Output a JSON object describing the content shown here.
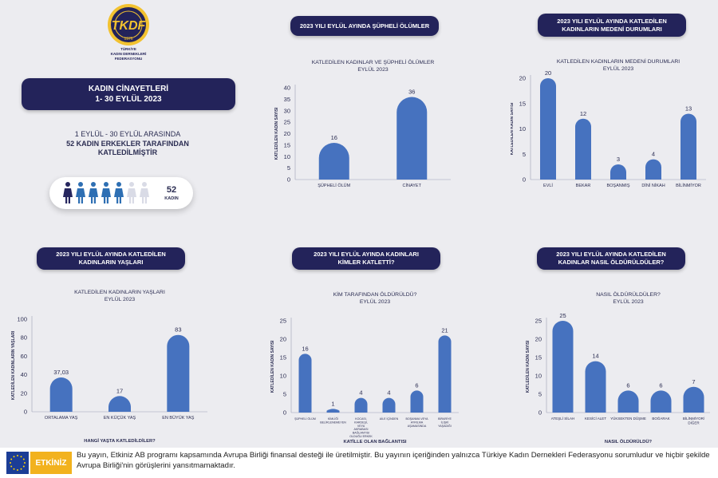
{
  "logo": {
    "org_line1": "TÜRKİYE",
    "org_line2": "KADIN DERNEKLERİ",
    "org_line3": "FEDERASYONU",
    "year": "1976",
    "monogram": "TKDF"
  },
  "header": {
    "title_line1": "KADIN CİNAYETLERİ",
    "title_line2": "1- 30 EYLÜL 2023"
  },
  "summary": {
    "line1": "1 EYLÜL - 30 EYLÜL  ARASINDA",
    "line2": "52 KADIN ERKEKLER TARAFINDAN",
    "line3": "KATLEDİLMİŞTİR",
    "count": "52",
    "count_unit": "KADIN",
    "icons_filled": 5,
    "icons_total": 7
  },
  "sections": {
    "supheli": {
      "l1": "2023 YILI EYLÜL AYINDA ŞÜPHELİ ÖLÜMLER",
      "l2": ""
    },
    "medeni": {
      "l1": "2023 YILI EYLÜL AYINDA KATLEDİLEN",
      "l2": "KADINLARIN MEDENİ DURUMLARI"
    },
    "yas": {
      "l1": "2023 YILI EYLÜL AYINDA KATLEDİLEN",
      "l2": "KADINLARIN YAŞLARI"
    },
    "kimler": {
      "l1": "2023 YILI EYLÜL AYINDA KADINLARI",
      "l2": "KİMLER KATLETTİ?"
    },
    "nasil": {
      "l1": "2023 YILI EYLÜL AYINDA KATLEDİLEN",
      "l2": "KADINLAR NASIL ÖLDÜRÜLDÜLER?"
    }
  },
  "footer": {
    "text": "Bu yayın, Etkiniz AB programı kapsamında Avrupa Birliği finansal desteği ile üretilmiştir. Bu yayının içeriğinden yalnızca Türkiye Kadın Dernekleri Federasyonu sorumludur ve hiçbir şekilde Avrupa Birliği'nin görüşlerini yansıtmamaktadır.",
    "partner": "ETKİNİZ"
  },
  "colors": {
    "bar": "#4672bf",
    "navy": "#23235a",
    "icon_filled": "#2e6fb3",
    "icon_dark": "#26265e",
    "icon_empty": "#d9dbe6"
  },
  "chart_data": [
    {
      "type": "bar",
      "title": "KATLEDİLEN KADINLAR VE ŞÜPHELİ ÖLÜMLER",
      "subtitle": "EYLÜL 2023",
      "ylabel": "KATLEDİLEN KADIN SAYISI",
      "xlabel": "",
      "categories": [
        "ŞÜPHELİ ÖLÜM",
        "CİNAYET"
      ],
      "values": [
        16,
        36
      ],
      "value_labels": [
        "16",
        "36"
      ],
      "ylim": [
        0,
        40
      ],
      "yticks": [
        0,
        5,
        10,
        15,
        20,
        25,
        30,
        35,
        40
      ]
    },
    {
      "type": "bar",
      "title": "KATLEDİLEN KADINLARIN MEDENİ DURUMLARI",
      "subtitle": "EYLÜL 2023",
      "ylabel": "KATLEDİLEN KADIN SAYISI",
      "xlabel": "",
      "categories": [
        "EVLİ",
        "BEKAR",
        "BOŞANMIŞ",
        "DİNİ NİKAH",
        "BİLİNMİYOR"
      ],
      "values": [
        20,
        12,
        3,
        4,
        13
      ],
      "value_labels": [
        "20",
        "12",
        "3",
        "4",
        "13"
      ],
      "ylim": [
        0,
        20
      ],
      "yticks": [
        0,
        5,
        10,
        15,
        20
      ]
    },
    {
      "type": "bar",
      "title": "KATLEDİLEN KADINLARIN YAŞLARI",
      "subtitle": "EYLÜL 2023",
      "ylabel": "KATLEDİLEN KADINLARIN YAŞLARI",
      "xlabel": "HANGİ YAŞTA KATLEDİLDİLER?",
      "categories": [
        "ORTALAMA YAŞ",
        "EN KÜÇÜK YAŞ",
        "EN BÜYÜK YAŞ"
      ],
      "values": [
        37.03,
        17,
        83
      ],
      "value_labels": [
        "37,03",
        "17",
        "83"
      ],
      "ylim": [
        0,
        100
      ],
      "yticks": [
        0,
        20,
        40,
        60,
        80,
        100
      ]
    },
    {
      "type": "bar",
      "title": "KİM TARAFINDAN ÖLDÜRÜLDÜ?",
      "subtitle": "EYLÜL 2023",
      "ylabel": "KATLEDİLEN KADIN SAYISI",
      "xlabel": "KATİLLE OLAN BAĞLANTISI",
      "categories": [
        "ŞÜPHELİ ÖLÜM",
        "KİMLİĞİ BELİRLENEMEYEN",
        "KOCASI, KARDEŞİ, VEYA AKRABASI BAĞLANTISI OLDUĞU ERKEK",
        "AİLE İÇİNDEN",
        "BOŞANMA VEYA AYRILMA AŞAMASINDA",
        "BİRARİYE İLİŞKİ YAŞADIĞI"
      ],
      "values": [
        16,
        1,
        4,
        4,
        6,
        21
      ],
      "value_labels": [
        "16",
        "1",
        "4",
        "4",
        "6",
        "21"
      ],
      "ylim": [
        0,
        25
      ],
      "yticks": [
        0,
        5,
        10,
        15,
        20,
        25
      ]
    },
    {
      "type": "bar",
      "title": "NASIL ÖLDÜRÜLDÜLER?",
      "subtitle": "EYLÜL 2023",
      "ylabel": "KATLEDİLEN KADIN SAYISI",
      "xlabel": "NASIL ÖLDÜRÜLDÜ?",
      "categories": [
        "ATEŞLİ SİLAH",
        "KESİCİ ALET",
        "YÜKSEKTEN DÜŞME",
        "BOĞARAK",
        "BİLİNMİYOR/ DİĞER"
      ],
      "values": [
        25,
        14,
        6,
        6,
        7
      ],
      "value_labels": [
        "25",
        "14",
        "6",
        "6",
        "7"
      ],
      "ylim": [
        0,
        25
      ],
      "yticks": [
        0,
        5,
        10,
        15,
        20,
        25
      ]
    }
  ]
}
